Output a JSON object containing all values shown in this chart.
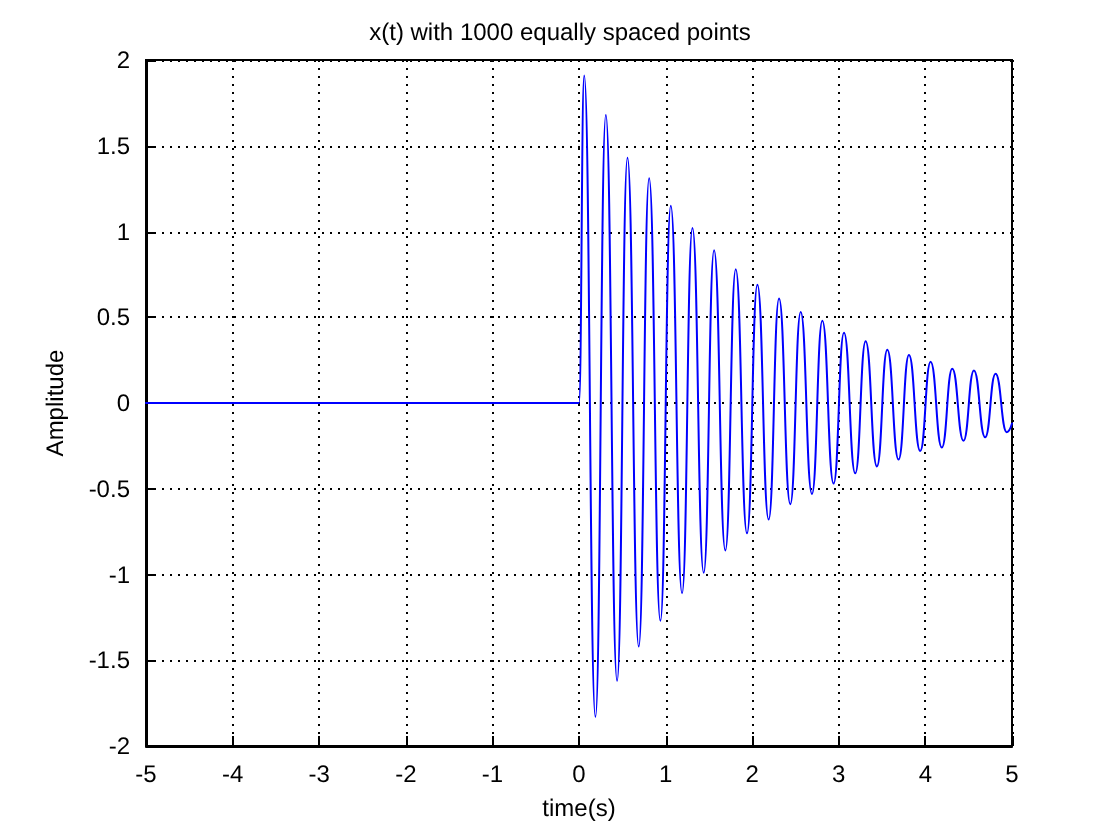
{
  "chart_data": {
    "type": "line",
    "title": "x(t) with 1000 equally spaced points",
    "xlabel": "time(s)",
    "ylabel": "Amplitude",
    "x": [
      -5,
      0,
      0.06,
      0.19,
      0.31,
      0.44,
      0.56,
      0.69,
      0.81,
      0.94,
      1.06,
      1.19,
      1.31,
      1.44,
      1.56,
      1.69,
      1.81,
      1.94,
      2.06,
      2.19,
      2.31,
      2.44,
      2.56,
      2.69,
      2.81,
      2.94,
      3.06,
      3.19,
      3.31,
      3.44,
      3.56,
      3.69,
      3.81,
      3.94,
      4.06,
      4.19,
      4.31,
      4.44,
      4.56,
      4.69,
      4.81,
      4.94,
      5
    ],
    "series": [
      {
        "color": "#0000ff",
        "values": [
          0,
          0,
          1.91,
          -1.83,
          1.68,
          -1.62,
          1.43,
          -1.42,
          1.31,
          -1.27,
          1.15,
          -1.11,
          1.02,
          -0.99,
          0.89,
          -0.86,
          0.78,
          -0.76,
          0.69,
          -0.68,
          0.61,
          -0.59,
          0.53,
          -0.53,
          0.48,
          -0.47,
          0.41,
          -0.41,
          0.36,
          -0.37,
          0.31,
          -0.33,
          0.28,
          -0.28,
          0.24,
          -0.26,
          0.2,
          -0.22,
          0.19,
          -0.2,
          0.17,
          -0.17,
          -0.12
        ]
      }
    ],
    "xlim": [
      -5,
      5
    ],
    "xticks": [
      -5,
      -4,
      -3,
      -2,
      -1,
      0,
      1,
      2,
      3,
      4,
      5
    ],
    "ylim": [
      -2,
      2
    ],
    "yticks": [
      -2,
      -1.5,
      -1,
      -0.5,
      0,
      0.5,
      1,
      1.5,
      2
    ],
    "grid": true,
    "marker": "none",
    "line_style": "solid"
  }
}
